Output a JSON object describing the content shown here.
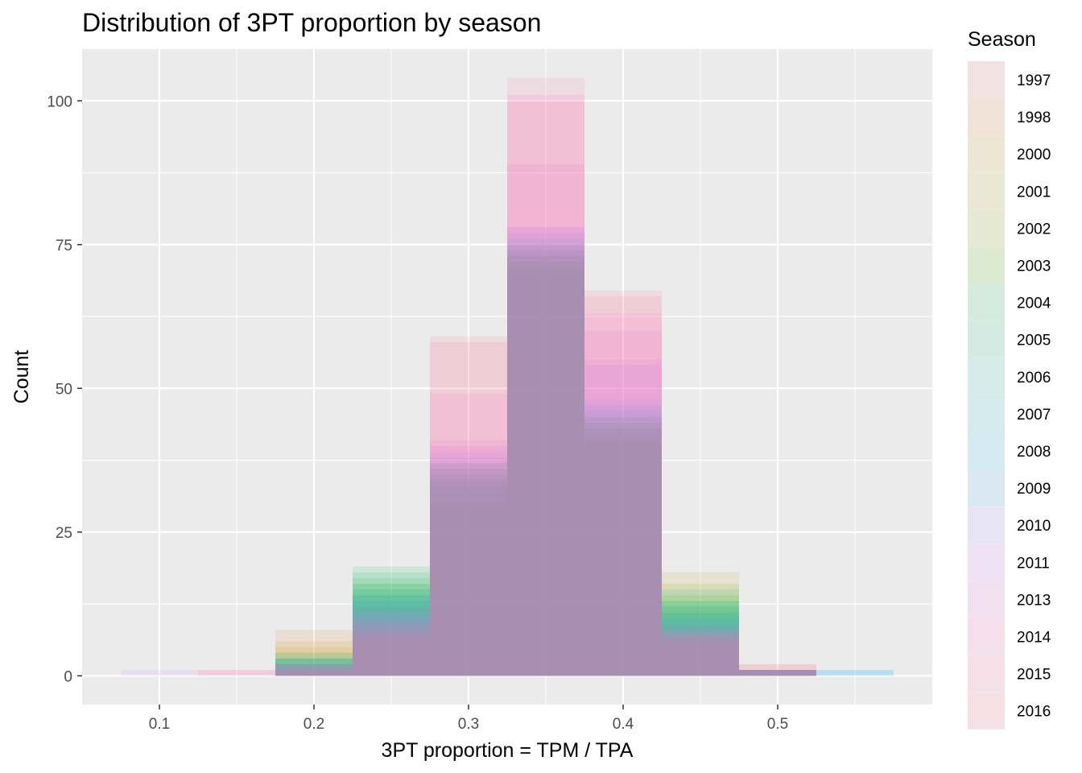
{
  "chart_data": {
    "type": "histogram",
    "title": "Distribution of 3PT proportion by season",
    "xlabel": "3PT proportion = TPM / TPA",
    "ylabel": "Count",
    "xlim": [
      0.05,
      0.6
    ],
    "ylim": [
      -5,
      109
    ],
    "x_ticks": [
      0.1,
      0.2,
      0.3,
      0.4,
      0.5
    ],
    "x_tick_labels": [
      "0.1",
      "0.2",
      "0.3",
      "0.4",
      "0.5"
    ],
    "y_ticks": [
      0,
      25,
      50,
      75,
      100
    ],
    "y_tick_labels": [
      "0",
      "25",
      "50",
      "75",
      "100"
    ],
    "grid": true,
    "bin_width": 0.05,
    "bin_centers": [
      0.1,
      0.15,
      0.2,
      0.25,
      0.3,
      0.35,
      0.4,
      0.45,
      0.5,
      0.55
    ],
    "legend": {
      "title": "Season",
      "position": "right"
    },
    "series": [
      {
        "name": "1997",
        "color": "#F8766D",
        "values": [
          0,
          0,
          2,
          14,
          32,
          70,
          40,
          9,
          2,
          0
        ]
      },
      {
        "name": "1998",
        "color": "#E7851E",
        "values": [
          0,
          0,
          8,
          12,
          34,
          72,
          42,
          11,
          1,
          0
        ]
      },
      {
        "name": "2000",
        "color": "#D09400",
        "values": [
          0,
          0,
          6,
          13,
          35,
          73,
          43,
          12,
          1,
          0
        ]
      },
      {
        "name": "2001",
        "color": "#B2A100",
        "values": [
          0,
          0,
          5,
          15,
          36,
          74,
          44,
          18,
          1,
          0
        ]
      },
      {
        "name": "2002",
        "color": "#89AC00",
        "values": [
          0,
          0,
          4,
          16,
          37,
          75,
          45,
          16,
          1,
          0
        ]
      },
      {
        "name": "2003",
        "color": "#45B500",
        "values": [
          0,
          0,
          3,
          17,
          30,
          71,
          41,
          14,
          1,
          0
        ]
      },
      {
        "name": "2004",
        "color": "#00BC51",
        "values": [
          0,
          0,
          2,
          19,
          33,
          72,
          43,
          13,
          1,
          0
        ]
      },
      {
        "name": "2005",
        "color": "#00C087",
        "values": [
          0,
          0,
          3,
          18,
          34,
          73,
          44,
          15,
          1,
          0
        ]
      },
      {
        "name": "2006",
        "color": "#00C0B2",
        "values": [
          0,
          0,
          4,
          16,
          35,
          74,
          45,
          13,
          1,
          0
        ]
      },
      {
        "name": "2007",
        "color": "#00BCD6",
        "values": [
          0,
          0,
          3,
          15,
          36,
          75,
          46,
          12,
          1,
          0
        ]
      },
      {
        "name": "2008",
        "color": "#00B3F2",
        "values": [
          0,
          0,
          2,
          14,
          37,
          76,
          47,
          11,
          1,
          1
        ]
      },
      {
        "name": "2009",
        "color": "#29A3FF",
        "values": [
          0,
          0,
          3,
          13,
          38,
          77,
          48,
          10,
          1,
          1
        ]
      },
      {
        "name": "2010",
        "color": "#9C8DFF",
        "values": [
          0,
          0,
          2,
          12,
          39,
          78,
          54,
          9,
          1,
          0
        ]
      },
      {
        "name": "2011",
        "color": "#D277FF",
        "values": [
          1,
          0,
          1,
          11,
          40,
          78,
          55,
          8,
          1,
          0
        ]
      },
      {
        "name": "2013",
        "color": "#F166E8",
        "values": [
          0,
          1,
          2,
          10,
          41,
          89,
          60,
          7,
          1,
          0
        ]
      },
      {
        "name": "2014",
        "color": "#FF61C7",
        "values": [
          0,
          0,
          1,
          9,
          49,
          101,
          63,
          6,
          1,
          0
        ]
      },
      {
        "name": "2015",
        "color": "#FF689E",
        "values": [
          0,
          1,
          1,
          8,
          58,
          104,
          66,
          7,
          1,
          0
        ]
      },
      {
        "name": "2016",
        "color": "#FF6C91",
        "values": [
          0,
          0,
          2,
          7,
          59,
          100,
          67,
          8,
          2,
          0
        ]
      }
    ]
  }
}
